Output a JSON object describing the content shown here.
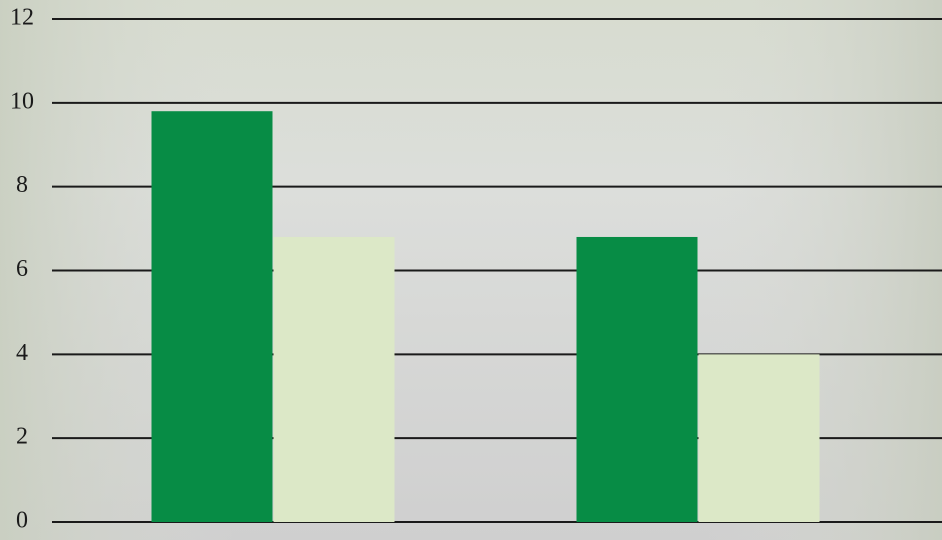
{
  "chart_data": {
    "type": "bar",
    "categories": [
      null,
      null
    ],
    "series": [
      {
        "color": "#078c45",
        "values": [
          9.8,
          6.8
        ]
      },
      {
        "color": "#dce8c7",
        "values": [
          6.8,
          4.0
        ]
      }
    ],
    "ylim": [
      0,
      12
    ],
    "yticks": [
      0,
      2,
      4,
      6,
      8,
      10,
      12
    ],
    "grid": true
  }
}
